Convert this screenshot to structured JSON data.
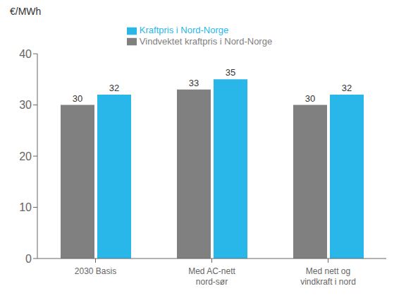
{
  "chart_data": {
    "type": "bar",
    "ylabel": "€/MWh",
    "categories": [
      "2030 Basis",
      "Med AC-nett\nnord-sør",
      "Med nett og\nvindkraft i nord"
    ],
    "series": [
      {
        "name": "Vindvektet kraftpris i Nord-Norge",
        "color": "#808080",
        "values": [
          30,
          33,
          30
        ]
      },
      {
        "name": "Kraftpris i Nord-Norge",
        "color": "#29b6e8",
        "values": [
          32,
          35,
          32
        ]
      }
    ],
    "ylim": [
      0,
      40
    ],
    "yticks": [
      0,
      10,
      20,
      30,
      40
    ],
    "grid": false,
    "legend": "top",
    "data_labels": true
  }
}
